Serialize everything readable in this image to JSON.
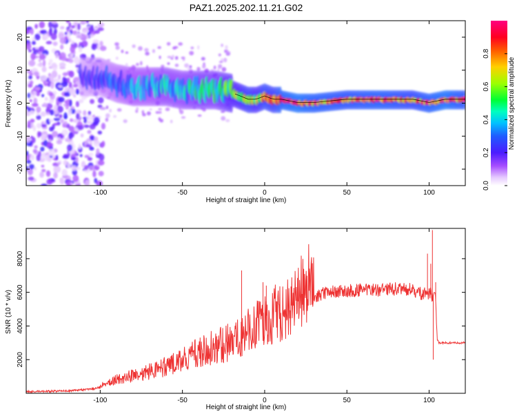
{
  "title": "PAZ1.2025.202.11.21.G02",
  "colors": {
    "snr_line": "#ee3333",
    "colormap": [
      "#ffffff",
      "#d9a8ff",
      "#8f3dff",
      "#5a10ff",
      "#1818ff",
      "#00b0ff",
      "#00ffc8",
      "#00ff44",
      "#b8ff00",
      "#ffaa00",
      "#ff2200",
      "#ff0066"
    ]
  },
  "chart_data": [
    {
      "type": "heatmap",
      "xlabel": "Height of straight line (km)",
      "ylabel": "Frequency (Hz)",
      "xlim": [
        -145,
        122
      ],
      "ylim": [
        -25,
        25
      ],
      "xticks": [
        -100,
        -50,
        0,
        50,
        100
      ],
      "xtick_labels": [
        "-100",
        "-50",
        "0",
        "50",
        "100"
      ],
      "yticks": [
        -20,
        -10,
        0,
        10,
        20
      ],
      "ytick_labels": [
        "-20",
        "-10",
        "0",
        "10",
        "20"
      ],
      "colorbar": {
        "label": "Normalized spectral amplitude",
        "range": [
          0,
          1
        ],
        "ticks": [
          0.0,
          0.2,
          0.4,
          0.6,
          0.8
        ],
        "tick_labels": [
          "0.0",
          "0.2",
          "0.4",
          "0.6",
          "0.8"
        ]
      },
      "ridge": {
        "x": [
          -112,
          -100,
          -90,
          -80,
          -70,
          -60,
          -50,
          -40,
          -30,
          -20,
          -15,
          -10,
          -5,
          0,
          5,
          10,
          20,
          30,
          50,
          70,
          90,
          100,
          110,
          122
        ],
        "frequency": [
          8,
          8,
          6,
          5,
          5,
          5,
          4,
          4,
          4,
          3,
          2,
          1,
          1,
          2,
          1,
          1,
          0,
          0,
          1,
          1,
          1,
          0,
          1,
          1
        ],
        "amplitude": [
          0.2,
          0.25,
          0.3,
          0.35,
          0.35,
          0.4,
          0.4,
          0.45,
          0.45,
          0.55,
          0.6,
          0.7,
          0.6,
          0.75,
          0.7,
          0.85,
          0.9,
          0.85,
          0.8,
          0.85,
          0.75,
          0.85,
          0.9,
          0.8
        ]
      }
    },
    {
      "type": "line",
      "xlabel": "Height of straight line (km)",
      "ylabel": "SNR (10 * v/v)",
      "xlim": [
        -145,
        122
      ],
      "ylim": [
        0,
        9800
      ],
      "xticks": [
        -100,
        -50,
        0,
        50,
        100
      ],
      "xtick_labels": [
        "-100",
        "-50",
        "0",
        "50",
        "100"
      ],
      "yticks": [
        2000,
        4000,
        6000,
        8000
      ],
      "ytick_labels": [
        "2000",
        "4000",
        "6000",
        "8000"
      ],
      "series": [
        {
          "x": [
            -145,
            -120,
            -105,
            -97,
            -90,
            -80,
            -70,
            -60,
            -50,
            -40,
            -30,
            -20,
            -15,
            -10,
            -5,
            0,
            5,
            10,
            15,
            20,
            25,
            30,
            35,
            40,
            50,
            60,
            70,
            80,
            90,
            95,
            100,
            103,
            104,
            105,
            106,
            122
          ],
          "y": [
            100,
            140,
            250,
            450,
            700,
            900,
            1100,
            1350,
            1700,
            2050,
            2350,
            2600,
            2900,
            3200,
            3400,
            3650,
            3900,
            4150,
            4500,
            4950,
            5400,
            5700,
            5900,
            6000,
            6100,
            6150,
            6150,
            6200,
            6150,
            5900,
            5900,
            5800,
            5500,
            3200,
            3000,
            3000
          ]
        }
      ],
      "spikes": [
        {
          "x": -14,
          "y": 7300
        },
        {
          "x": -1,
          "y": 6600
        },
        {
          "x": 1,
          "y": 6400
        },
        {
          "x": 99,
          "y": 8300
        },
        {
          "x": 101,
          "y": 7700
        },
        {
          "x": 102,
          "y": 9700
        },
        {
          "x": 102.5,
          "y": 2000
        },
        {
          "x": 104,
          "y": 6600
        }
      ]
    }
  ]
}
